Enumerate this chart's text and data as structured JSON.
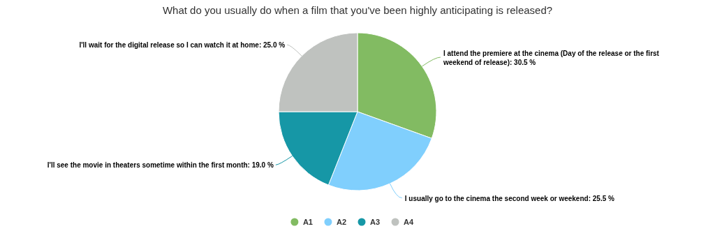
{
  "chart_data": {
    "type": "pie",
    "title": "What do you usually do when a film that you've been highly anticipating is released?",
    "categories": [
      "A1",
      "A2",
      "A3",
      "A4"
    ],
    "values": [
      30.5,
      25.5,
      19.0,
      25.0
    ],
    "colors": [
      "#82bb62",
      "#80cffd",
      "#1697a6",
      "#bfc2bf"
    ],
    "value_labels": [
      "I attend the premiere at the cinema (Day of the release or the first weekend of release): 30.5 %",
      "I usually go to the cinema the second week or weekend: 25.5 %",
      "I'll see the movie in theaters sometime within the first month: 19.0 %",
      "I'll wait for the digital release so I can watch it at home: 25.0 %"
    ],
    "legend": "bottom"
  }
}
